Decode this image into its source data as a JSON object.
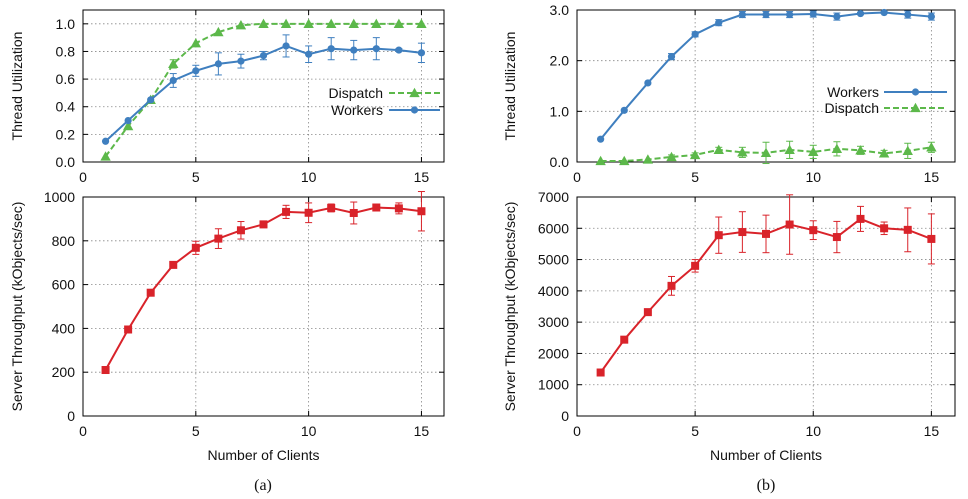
{
  "figure": {
    "x_axis_title": "Number of Clients",
    "caption_a": "(a)",
    "caption_b": "(b)"
  },
  "colors": {
    "workers": "#3f7fbf",
    "dispatch": "#5cb84a",
    "throughput": "#d9232a",
    "grid": "#888888"
  },
  "chart_data": [
    {
      "id": "a-util",
      "type": "line",
      "ylabel": "Thread Utilization",
      "xlim": [
        0,
        16
      ],
      "ylim": [
        0,
        1.1
      ],
      "xticks": [
        0,
        5,
        10,
        15
      ],
      "yticks": [
        0,
        0.2,
        0.4,
        0.6,
        0.8,
        1.0
      ],
      "ytick_labels": [
        "0.0",
        "0.2",
        "0.4",
        "0.6",
        "0.8",
        "1.0"
      ],
      "show_x_tick_labels": true,
      "grid": true,
      "legend": "right",
      "x": [
        1,
        2,
        3,
        4,
        5,
        6,
        7,
        8,
        9,
        10,
        11,
        12,
        13,
        14,
        15
      ],
      "series": [
        {
          "name": "Dispatch",
          "key": "dispatch",
          "marker": "triangle",
          "dash": true,
          "values": [
            0.04,
            0.26,
            0.45,
            0.71,
            0.86,
            0.94,
            0.99,
            1.0,
            1.0,
            1.0,
            1.0,
            1.0,
            1.0,
            1.0,
            1.0
          ],
          "errors": [
            0,
            0,
            0,
            0.03,
            0,
            0,
            0,
            0,
            0,
            0,
            0,
            0,
            0,
            0,
            0
          ]
        },
        {
          "name": "Workers",
          "key": "workers",
          "marker": "circle",
          "dash": false,
          "values": [
            0.15,
            0.3,
            0.45,
            0.59,
            0.66,
            0.71,
            0.73,
            0.77,
            0.84,
            0.78,
            0.82,
            0.81,
            0.82,
            0.81,
            0.79
          ],
          "errors": [
            0,
            0,
            0,
            0.05,
            0.04,
            0.08,
            0.05,
            0.03,
            0.08,
            0.06,
            0.08,
            0.07,
            0.08,
            0.01,
            0.07
          ]
        }
      ]
    },
    {
      "id": "b-util",
      "type": "line",
      "ylabel": "Thread Utilization",
      "xlim": [
        0,
        16
      ],
      "ylim": [
        0,
        3.0
      ],
      "xticks": [
        0,
        5,
        10,
        15
      ],
      "yticks": [
        0,
        1.0,
        2.0,
        3.0
      ],
      "ytick_labels": [
        "0.0",
        "1.0",
        "2.0",
        "3.0"
      ],
      "show_x_tick_labels": true,
      "grid": true,
      "legend": "right",
      "x": [
        1,
        2,
        3,
        4,
        5,
        6,
        7,
        8,
        9,
        10,
        11,
        12,
        13,
        14,
        15
      ],
      "series": [
        {
          "name": "Workers",
          "key": "workers",
          "marker": "circle",
          "dash": false,
          "values": [
            0.45,
            1.02,
            1.56,
            2.08,
            2.52,
            2.75,
            2.91,
            2.91,
            2.91,
            2.92,
            2.87,
            2.93,
            2.95,
            2.91,
            2.87
          ],
          "errors": [
            0,
            0,
            0,
            0.06,
            0.05,
            0.06,
            0.06,
            0.06,
            0.06,
            0.06,
            0.07,
            0.02,
            0.02,
            0.07,
            0.07
          ]
        },
        {
          "name": "Dispatch",
          "key": "dispatch",
          "marker": "triangle",
          "dash": true,
          "values": [
            0.02,
            0.02,
            0.05,
            0.1,
            0.14,
            0.24,
            0.19,
            0.18,
            0.24,
            0.2,
            0.26,
            0.23,
            0.17,
            0.22,
            0.29
          ],
          "errors": [
            0,
            0,
            0,
            0.04,
            0.04,
            0.05,
            0.1,
            0.21,
            0.17,
            0.13,
            0.14,
            0.08,
            0.06,
            0.15,
            0.1
          ]
        }
      ]
    },
    {
      "id": "a-thr",
      "type": "line",
      "ylabel": "Server Throughput (kObjects/sec)",
      "xlabel": "Number of Clients",
      "xlim": [
        0,
        16
      ],
      "ylim": [
        0,
        1000
      ],
      "xticks": [
        0,
        5,
        10,
        15
      ],
      "yticks": [
        0,
        200,
        400,
        600,
        800,
        1000
      ],
      "ytick_labels": [
        "0",
        "200",
        "400",
        "600",
        "800",
        "1000"
      ],
      "show_x_tick_labels": true,
      "grid": true,
      "x": [
        1,
        2,
        3,
        4,
        5,
        6,
        7,
        8,
        9,
        10,
        11,
        12,
        13,
        14,
        15
      ],
      "series": [
        {
          "key": "throughput",
          "marker": "square",
          "dash": false,
          "values": [
            210,
            395,
            563,
            690,
            768,
            810,
            848,
            875,
            932,
            928,
            950,
            927,
            952,
            948,
            935
          ],
          "errors": [
            0,
            0,
            0,
            12,
            30,
            45,
            40,
            15,
            30,
            45,
            18,
            50,
            15,
            25,
            90
          ]
        }
      ]
    },
    {
      "id": "b-thr",
      "type": "line",
      "ylabel": "Server Throughput (kObjects/sec)",
      "xlabel": "Number of Clients",
      "xlim": [
        0,
        16
      ],
      "ylim": [
        0,
        7000
      ],
      "xticks": [
        0,
        5,
        10,
        15
      ],
      "yticks": [
        0,
        1000,
        2000,
        3000,
        4000,
        5000,
        6000,
        7000
      ],
      "ytick_labels": [
        "0",
        "1000",
        "2000",
        "3000",
        "4000",
        "5000",
        "6000",
        "7000"
      ],
      "show_x_tick_labels": true,
      "grid": true,
      "x": [
        1,
        2,
        3,
        4,
        5,
        6,
        7,
        8,
        9,
        10,
        11,
        12,
        13,
        14,
        15
      ],
      "series": [
        {
          "key": "throughput",
          "marker": "square",
          "dash": false,
          "values": [
            1390,
            2440,
            3320,
            4160,
            4800,
            5780,
            5880,
            5820,
            6120,
            5940,
            5720,
            6300,
            6000,
            5950,
            5660
          ],
          "errors": [
            0,
            0,
            0,
            300,
            200,
            580,
            650,
            600,
            950,
            300,
            500,
            400,
            200,
            700,
            800
          ]
        }
      ]
    }
  ]
}
